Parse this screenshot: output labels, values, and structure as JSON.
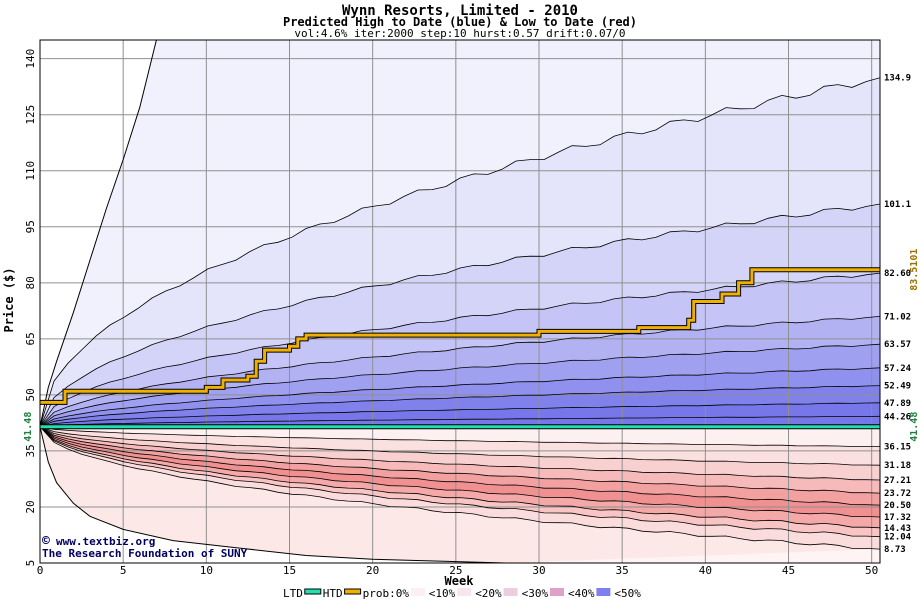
{
  "chart_data": {
    "type": "area",
    "title": "Wynn Resorts, Limited - 2010",
    "subtitle": "Predicted High to Date (blue) &  Low to Date (red)",
    "params": "vol:4.6% iter:2000 step:10 hurst:0.57 drift:0.07/0",
    "xlabel": "Week",
    "ylabel": "Price ($)",
    "xlim": [
      0,
      50.5
    ],
    "ylim": [
      5,
      145
    ],
    "x_ticks": [
      0,
      5,
      10,
      15,
      20,
      25,
      30,
      35,
      40,
      45,
      50
    ],
    "y_ticks": [
      5,
      20,
      35,
      50,
      65,
      80,
      95,
      110,
      125,
      140
    ],
    "grid": true,
    "start_price": 41.48,
    "start_price_label": "41.48",
    "current_high_label": "83.5101",
    "upper_bands_end": [
      134.9,
      101.1,
      82.6,
      71.02,
      63.57,
      57.24,
      52.49,
      47.89,
      44.26
    ],
    "upper_band_labels": [
      "134.9",
      "101.1",
      "82.60",
      "71.02",
      "63.57",
      "57.24",
      "52.49",
      "47.89",
      "44.26"
    ],
    "lower_bands_end": [
      36.15,
      31.18,
      27.21,
      23.72,
      20.5,
      17.32,
      14.43,
      12.04,
      8.73
    ],
    "lower_band_labels": [
      "36.15",
      "31.18",
      "27.21",
      "23.72",
      "20.50",
      "17.32",
      "14.43",
      "12.04",
      "8.73"
    ],
    "upper_outer_curve": [
      [
        0,
        41.48
      ],
      [
        0.5,
        52
      ],
      [
        1,
        59
      ],
      [
        2,
        72
      ],
      [
        3,
        86
      ],
      [
        4,
        100
      ],
      [
        5,
        113
      ],
      [
        6,
        127
      ],
      [
        7,
        145
      ]
    ],
    "lower_outer_curve": [
      [
        0,
        41.48
      ],
      [
        0.5,
        32
      ],
      [
        1,
        26.5
      ],
      [
        2,
        21
      ],
      [
        3,
        17.5
      ],
      [
        5,
        14
      ],
      [
        8,
        11
      ],
      [
        12,
        9
      ],
      [
        16,
        7
      ],
      [
        20,
        6
      ],
      [
        28,
        5
      ]
    ],
    "high_to_date_series": {
      "name": "prob:0%",
      "points": [
        [
          0,
          48
        ],
        [
          1.5,
          48
        ],
        [
          1.5,
          51
        ],
        [
          10,
          51
        ],
        [
          10,
          52
        ],
        [
          11,
          52
        ],
        [
          11,
          54
        ],
        [
          12.5,
          54
        ],
        [
          12.5,
          55
        ],
        [
          13,
          55
        ],
        [
          13,
          59
        ],
        [
          13.5,
          59
        ],
        [
          13.5,
          62
        ],
        [
          15,
          62
        ],
        [
          15,
          63
        ],
        [
          15.5,
          63
        ],
        [
          15.5,
          65
        ],
        [
          16,
          65
        ],
        [
          16,
          66
        ],
        [
          30,
          66
        ],
        [
          30,
          67
        ],
        [
          36,
          67
        ],
        [
          36,
          68
        ],
        [
          39,
          68
        ],
        [
          39,
          70
        ],
        [
          39.3,
          70
        ],
        [
          39.3,
          75
        ],
        [
          41,
          75
        ],
        [
          41,
          77
        ],
        [
          42,
          77
        ],
        [
          42,
          80
        ],
        [
          42.8,
          80
        ],
        [
          42.8,
          83.51
        ],
        [
          50.5,
          83.51
        ]
      ]
    },
    "legend": [
      "LTD",
      "HTD",
      "prob:0%",
      "<10%",
      "<20%",
      "<30%",
      "<40%",
      "<50%"
    ],
    "colors": {
      "blue_bands": [
        "#f1f1fd",
        "#e4e4fb",
        "#d4d4f8",
        "#c4c4f6",
        "#b2b2f3",
        "#a0a0f0",
        "#9090ee",
        "#8181ec",
        "#7777ea"
      ],
      "red_bands": [
        "#fdf0f0",
        "#fbdede",
        "#f8caca",
        "#f6b6b6",
        "#f3a2a2",
        "#f18f8f",
        "#ef8282",
        "#ec7878",
        "#ea7070"
      ],
      "outer_blue": "#f4f4fe",
      "outer_red": "#fef4f4",
      "htd_line": "#f0b000",
      "ltd_line": "#20e0b0",
      "label_green": "#208040",
      "label_gold": "#a07000"
    }
  },
  "credit": {
    "copyright_symbol": "©",
    "site": "www.textbiz.org",
    "org": "The Research Foundation of SUNY"
  },
  "legend_items": [
    {
      "label": "LTD",
      "swatch": "none"
    },
    {
      "label": "HTD",
      "swatch": "#20e0b0"
    },
    {
      "label": "prob:0%",
      "swatch": "#f0b000"
    },
    {
      "label": "<10%",
      "swatch": "#fdf0f0"
    },
    {
      "label": "<20%",
      "swatch": "#f6e6f2"
    },
    {
      "label": "<30%",
      "swatch": "#efcde0"
    },
    {
      "label": "<40%",
      "swatch": "#e0a0c8"
    },
    {
      "label": "<50%",
      "swatch": "#8080ec"
    }
  ]
}
